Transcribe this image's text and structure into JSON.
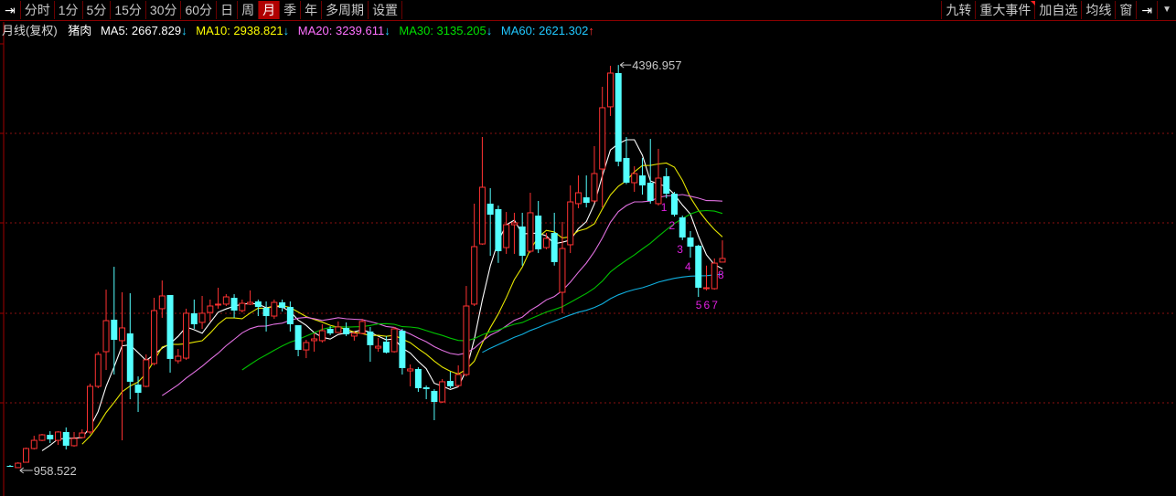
{
  "toolbar": {
    "left_icon": "collapse-arrow-icon",
    "periods": [
      "分时",
      "1分",
      "5分",
      "15分",
      "30分",
      "60分",
      "日",
      "周",
      "月",
      "季",
      "年",
      "多周期",
      "设置"
    ],
    "selected": "月",
    "right": [
      "九转",
      "重大事件",
      "加自选",
      "均线",
      "窗"
    ],
    "right_icon": "collapse-arrow-icon",
    "dropdown_icon": "chevron-down-icon"
  },
  "info": {
    "period_label": "月线(复权)",
    "name": "猪肉",
    "ma": [
      {
        "label": "MA5: 2667.829",
        "arrow": "↓",
        "color": "#ffffff",
        "arrow_color": "#20d0ff"
      },
      {
        "label": "MA10: 2938.821",
        "arrow": "↓",
        "color": "#ffff00",
        "arrow_color": "#20d0ff"
      },
      {
        "label": "MA20: 3239.611",
        "arrow": "↓",
        "color": "#ff70ff",
        "arrow_color": "#20d0ff"
      },
      {
        "label": "MA30: 3135.205",
        "arrow": "↓",
        "color": "#00e000",
        "arrow_color": "#20d0ff"
      },
      {
        "label": "MA60: 2621.302",
        "arrow": "↑",
        "color": "#20c8ff",
        "arrow_color": "#ff3030"
      }
    ]
  },
  "chart_data": {
    "type": "candlestick",
    "ylim": [
      740,
      4640
    ],
    "grid": true,
    "up_color": "#ff3232",
    "down_color": "#54ffff",
    "ohlc": [
      [
        974,
        982,
        966,
        966
      ],
      [
        959,
        1005,
        958.522,
        997
      ],
      [
        1005,
        1130,
        1005,
        1122
      ],
      [
        1122,
        1231,
        1114,
        1192
      ],
      [
        1192,
        1247,
        1185,
        1239
      ],
      [
        1239,
        1270,
        1169,
        1200
      ],
      [
        1192,
        1270,
        1153,
        1263
      ],
      [
        1263,
        1302,
        1114,
        1146
      ],
      [
        1146,
        1263,
        1138,
        1208
      ],
      [
        1216,
        1286,
        1208,
        1255
      ],
      [
        1263,
        1676,
        1247,
        1653
      ],
      [
        1653,
        1949,
        1637,
        1926
      ],
      [
        1949,
        2479,
        1793,
        2214
      ],
      [
        2222,
        2674,
        1754,
        2050
      ],
      [
        2043,
        2456,
        1192,
        2152
      ],
      [
        2105,
        2448,
        1543,
        1692
      ],
      [
        1668,
        1738,
        1434,
        1598
      ],
      [
        1653,
        1926,
        1645,
        1879
      ],
      [
        1848,
        2409,
        1832,
        2300
      ],
      [
        2316,
        2557,
        2238,
        2425
      ],
      [
        2433,
        2433,
        1770,
        1887
      ],
      [
        1871,
        1972,
        1848,
        1910
      ],
      [
        1894,
        2316,
        1879,
        2277
      ],
      [
        2277,
        2394,
        2144,
        2183
      ],
      [
        2199,
        2425,
        2144,
        2277
      ],
      [
        2284,
        2394,
        2207,
        2339
      ],
      [
        2347,
        2495,
        2316,
        2355
      ],
      [
        2355,
        2440,
        2339,
        2417
      ],
      [
        2409,
        2440,
        2238,
        2300
      ],
      [
        2300,
        2394,
        2284,
        2362
      ],
      [
        2355,
        2472,
        2347,
        2370
      ],
      [
        2378,
        2394,
        2253,
        2331
      ],
      [
        2323,
        2378,
        2121,
        2253
      ],
      [
        2253,
        2394,
        2230,
        2370
      ],
      [
        2370,
        2394,
        2292,
        2323
      ],
      [
        2331,
        2378,
        2121,
        2183
      ],
      [
        2175,
        2175,
        1910,
        1964
      ],
      [
        1964,
        2050,
        1894,
        2027
      ],
      [
        2043,
        2105,
        1949,
        2058
      ],
      [
        2043,
        2183,
        2027,
        2128
      ],
      [
        2144,
        2167,
        2090,
        2105
      ],
      [
        2113,
        2207,
        2113,
        2160
      ],
      [
        2152,
        2199,
        2082,
        2097
      ],
      [
        2082,
        2121,
        2043,
        2105
      ],
      [
        2105,
        2230,
        2097,
        2207
      ],
      [
        2121,
        2160,
        1863,
        2004
      ],
      [
        1980,
        2066,
        1949,
        1995
      ],
      [
        2035,
        2082,
        1933,
        1941
      ],
      [
        1949,
        2160,
        1941,
        2144
      ],
      [
        2128,
        2144,
        1754,
        1809
      ],
      [
        1785,
        1840,
        1653,
        1801
      ],
      [
        1801,
        1816,
        1606,
        1637
      ],
      [
        1645,
        1660,
        1543,
        1629
      ],
      [
        1614,
        1629,
        1364,
        1520
      ],
      [
        1520,
        1715,
        1512,
        1692
      ],
      [
        1699,
        1777,
        1637,
        1653
      ],
      [
        1660,
        1832,
        1645,
        1754
      ],
      [
        1754,
        2510,
        1738,
        2339
      ],
      [
        2355,
        3213,
        2339,
        2846
      ],
      [
        2869,
        3782,
        2862,
        3353
      ],
      [
        3213,
        3345,
        2768,
        3119
      ],
      [
        3166,
        3197,
        2707,
        2807
      ],
      [
        2838,
        3142,
        2784,
        3033
      ],
      [
        3033,
        3135,
        2784,
        3049
      ],
      [
        3018,
        3135,
        2684,
        2768
      ],
      [
        2807,
        3306,
        2791,
        3135
      ],
      [
        3111,
        3236,
        2791,
        2823
      ],
      [
        2838,
        2963,
        2823,
        2916
      ],
      [
        2963,
        3135,
        2684,
        2714
      ],
      [
        2456,
        3057,
        2277,
        2830
      ],
      [
        2862,
        3369,
        2791,
        3228
      ],
      [
        3213,
        3454,
        3174,
        3306
      ],
      [
        3267,
        3454,
        3181,
        3220
      ],
      [
        3236,
        3704,
        3220,
        3470
      ],
      [
        3509,
        4211,
        3181,
        4032
      ],
      [
        4040,
        4390,
        3962,
        4328
      ],
      [
        4328,
        4396.957,
        3532,
        3572
      ],
      [
        3603,
        3782,
        3380,
        3392
      ],
      [
        3392,
        3532,
        3314,
        3470
      ],
      [
        3454,
        3603,
        3290,
        3369
      ],
      [
        3392,
        3766,
        3213,
        3236
      ],
      [
        3213,
        3681,
        3197,
        3431
      ],
      [
        3447,
        3517,
        3259,
        3298
      ],
      [
        3298,
        3314,
        3103,
        3119
      ],
      [
        3096,
        3111,
        2902,
        2924
      ],
      [
        2924,
        2979,
        2752,
        2846
      ],
      [
        2854,
        2862,
        2417,
        2495
      ],
      [
        2487,
        2684,
        2472,
        2495
      ],
      [
        2487,
        2745,
        2479,
        2705
      ],
      [
        2714,
        2900,
        2714,
        2745
      ]
    ],
    "moving_averages": [
      {
        "name": "MA5",
        "period": 5,
        "color": "#ffffff"
      },
      {
        "name": "MA10",
        "period": 10,
        "color": "#e6e600"
      },
      {
        "name": "MA20",
        "period": 20,
        "color": "#e070e0"
      },
      {
        "name": "MA30",
        "period": 30,
        "color": "#00c000"
      },
      {
        "name": "MA60",
        "period": 60,
        "color": "#10b0e0"
      }
    ],
    "max_label": "4396.957",
    "min_label": "958.522",
    "sequence_labels": [
      {
        "text": "1",
        "candle": 83
      },
      {
        "text": "2",
        "candle": 84
      },
      {
        "text": "3",
        "candle": 85
      },
      {
        "text": "4",
        "candle": 86
      },
      {
        "text": "5",
        "candle": 87
      },
      {
        "text": "6",
        "candle": 88
      },
      {
        "text": "7",
        "candle": 89
      },
      {
        "text": "8",
        "candle": 90
      }
    ],
    "sequence_color": "#e020e0"
  }
}
